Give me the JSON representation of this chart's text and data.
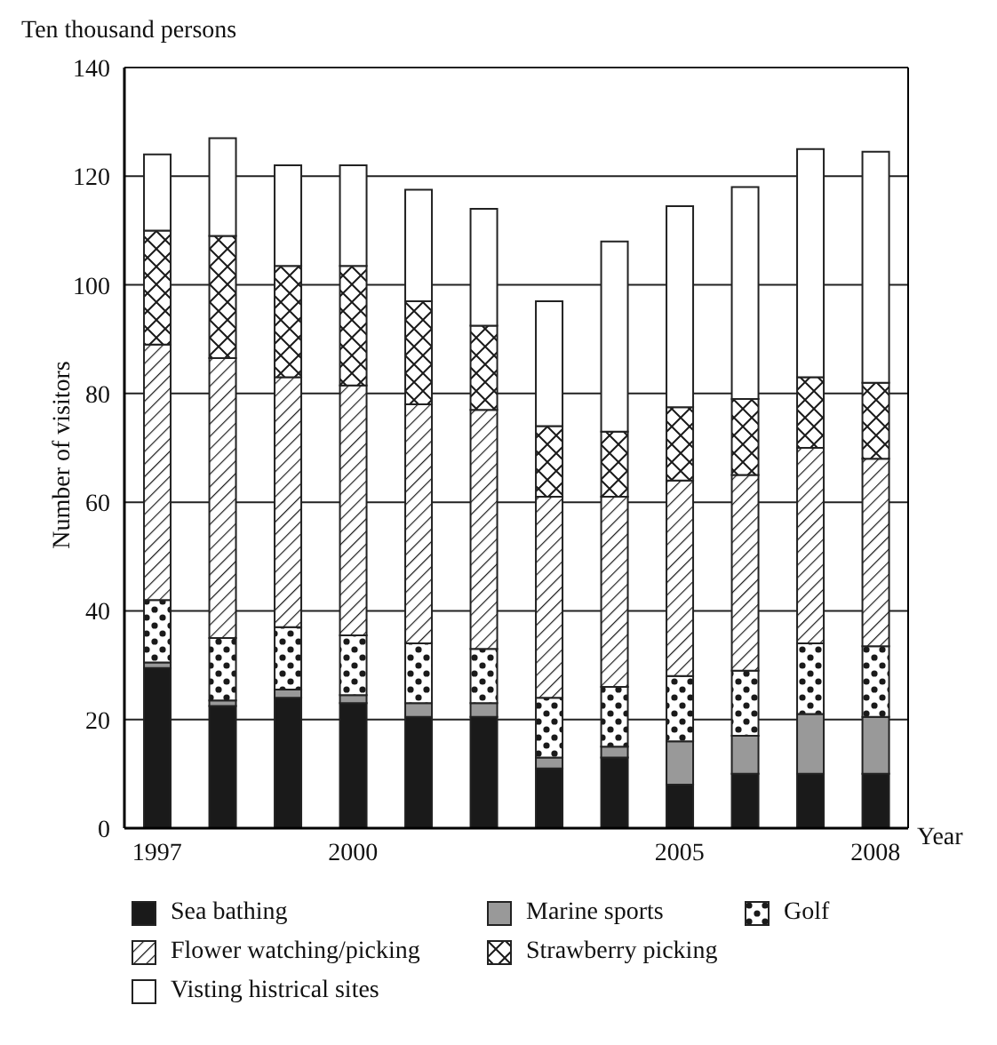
{
  "chart_data": {
    "type": "bar",
    "stacked": true,
    "ylabel": "Number of visitors",
    "xlabel": "Year",
    "annotations": [
      "Ten thousand persons"
    ],
    "categories": [
      "1997",
      null,
      null,
      "2000",
      null,
      null,
      null,
      null,
      "2005",
      null,
      null,
      "2008"
    ],
    "series": [
      {
        "name": "Sea bathing",
        "color": "#1a1a1a",
        "values": [
          29.5,
          22.5,
          24,
          23,
          20.5,
          20.5,
          11,
          13,
          8,
          10,
          10,
          10
        ]
      },
      {
        "name": "Marine sports",
        "color": "#999999",
        "values": [
          1,
          1,
          1.5,
          1.5,
          2.5,
          2.5,
          2,
          2,
          8,
          7,
          11,
          10.5
        ]
      },
      {
        "name": "Golf",
        "color": "#1a1a1a",
        "values": [
          11.5,
          11.5,
          11.5,
          11,
          11,
          10,
          11,
          11,
          12,
          12,
          13,
          13
        ]
      },
      {
        "name": "Flower watching/picking",
        "color": "#1a1a1a",
        "values": [
          47,
          51.5,
          46,
          46,
          44,
          44,
          37,
          35,
          36,
          36,
          36,
          34.5
        ]
      },
      {
        "name": "Strawberry picking",
        "color": "#1a1a1a",
        "values": [
          21,
          22.5,
          20.5,
          22,
          19,
          15.5,
          13,
          12,
          13.5,
          14,
          13,
          14
        ]
      },
      {
        "name": "Visting histrical sites",
        "color": "#ffffff",
        "values": [
          14,
          18,
          18.5,
          18.5,
          20.5,
          21.5,
          23,
          35,
          37,
          39,
          42,
          42.5
        ]
      }
    ],
    "ylim": [
      0,
      140
    ],
    "yticks": [
      0,
      20,
      40,
      60,
      80,
      100,
      120,
      140
    ],
    "grid": "y",
    "legend": "bottom"
  }
}
